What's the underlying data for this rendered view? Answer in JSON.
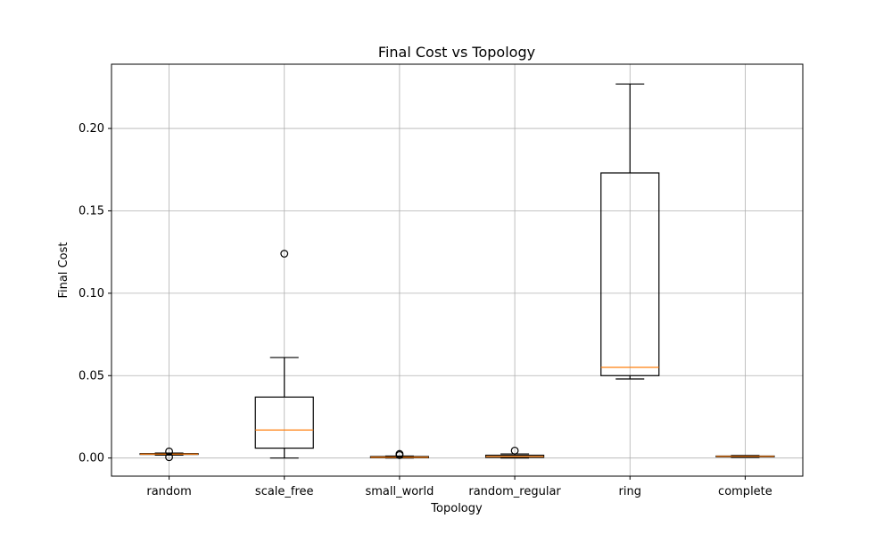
{
  "chart_data": {
    "type": "box",
    "title": "Final Cost vs Topology",
    "xlabel": "Topology",
    "ylabel": "Final Cost",
    "ylim": [
      -0.011,
      0.239
    ],
    "yticks": [
      0.0,
      0.05,
      0.1,
      0.15,
      0.2
    ],
    "ytick_labels": [
      "0.00",
      "0.05",
      "0.10",
      "0.15",
      "0.20"
    ],
    "grid": true,
    "colors": {
      "box": "#000000",
      "median": "#ff7f0e",
      "grid": "#b0b0b0"
    },
    "categories": [
      "random",
      "scale_free",
      "small_world",
      "random_regular",
      "ring",
      "complete"
    ],
    "boxes": [
      {
        "whisker_low": 0.0018,
        "q1": 0.0022,
        "median": 0.0024,
        "q3": 0.0027,
        "whisker_high": 0.003,
        "outliers": [
          0.004,
          0.0005
        ]
      },
      {
        "whisker_low": 0.0,
        "q1": 0.006,
        "median": 0.017,
        "q3": 0.037,
        "whisker_high": 0.061,
        "outliers": [
          0.124
        ]
      },
      {
        "whisker_low": 0.0,
        "q1": 0.0002,
        "median": 0.0005,
        "q3": 0.0009,
        "whisker_high": 0.0012,
        "outliers": [
          0.0025,
          0.0018
        ]
      },
      {
        "whisker_low": 0.0,
        "q1": 0.0004,
        "median": 0.0009,
        "q3": 0.0017,
        "whisker_high": 0.0025,
        "outliers": [
          0.0045
        ]
      },
      {
        "whisker_low": 0.048,
        "q1": 0.05,
        "median": 0.055,
        "q3": 0.173,
        "whisker_high": 0.227,
        "outliers": []
      },
      {
        "whisker_low": 0.0004,
        "q1": 0.0008,
        "median": 0.001,
        "q3": 0.0012,
        "whisker_high": 0.0015,
        "outliers": []
      }
    ]
  }
}
